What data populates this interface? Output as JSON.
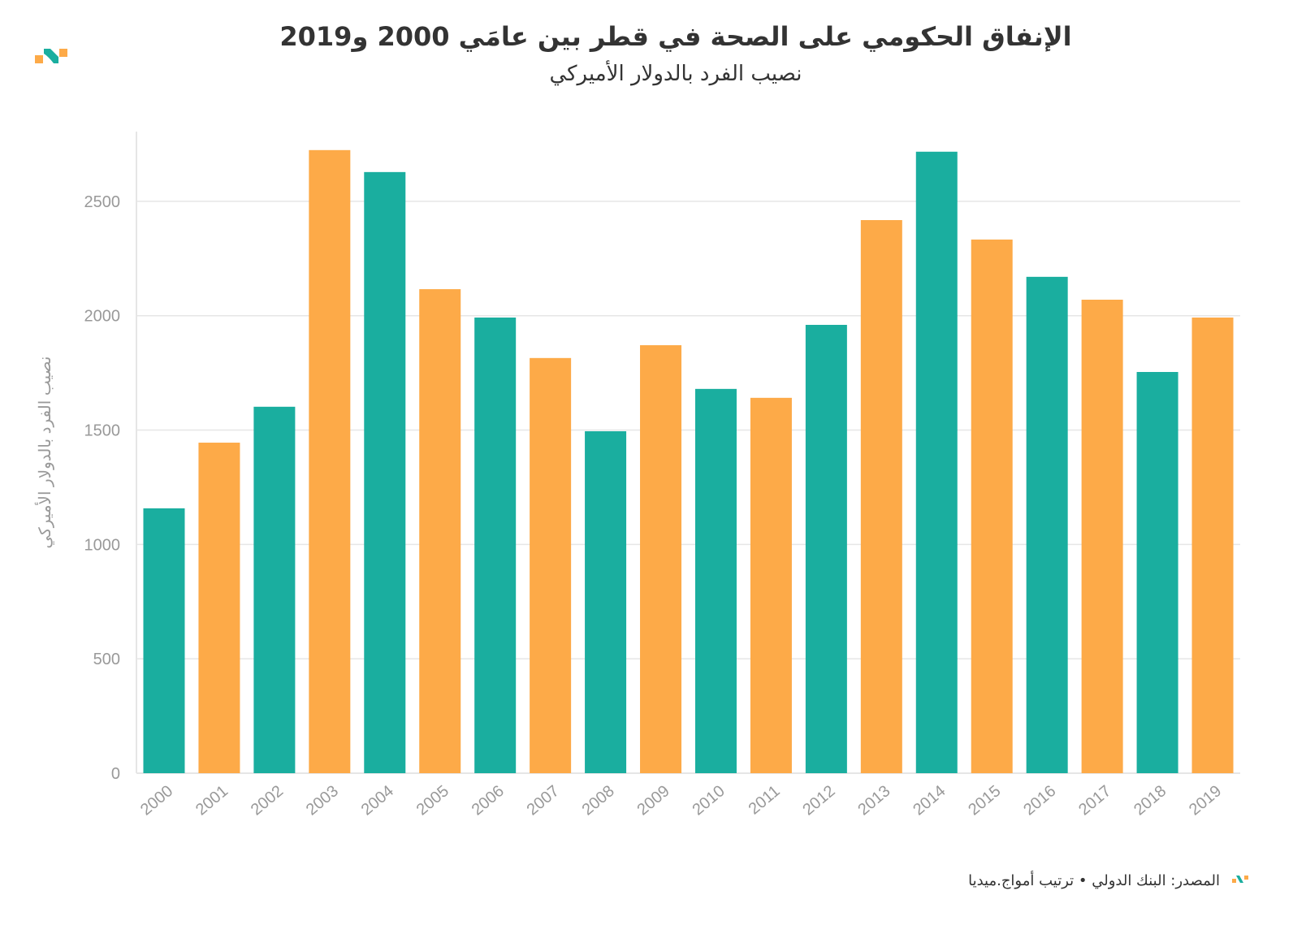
{
  "header": {
    "title": "الإنفاق الحكومي على الصحة في قطر بين عامَي 2000 و2019",
    "subtitle": "نصيب الفرد بالدولار الأميركي"
  },
  "footer": {
    "source": "المصدر: البنك الدولي • ترتيب أمواج.ميديا"
  },
  "colors": {
    "teal": "#1aae9f",
    "orange": "#fdaa48",
    "grid": "#e6e6e6",
    "text": "#999999"
  },
  "chart_data": {
    "type": "bar",
    "title": "الإنفاق الحكومي على الصحة في قطر بين عامَي 2000 و2019",
    "subtitle": "نصيب الفرد بالدولار الأميركي",
    "xlabel": "",
    "ylabel": "نصيب الفرد بالدولار الأميركي",
    "ylim": [
      0,
      2805
    ],
    "yticks": [
      0,
      500,
      1000,
      1500,
      2000,
      2500
    ],
    "grid": true,
    "categories": [
      "2000",
      "2001",
      "2002",
      "2003",
      "2004",
      "2005",
      "2006",
      "2007",
      "2008",
      "2009",
      "2010",
      "2011",
      "2012",
      "2013",
      "2014",
      "2015",
      "2016",
      "2017",
      "2018",
      "2019"
    ],
    "values": [
      1158,
      1445,
      1602,
      2724,
      2628,
      2116,
      1992,
      1815,
      1495,
      1871,
      1680,
      1641,
      1960,
      2418,
      2717,
      2333,
      2170,
      2070,
      1754,
      1992
    ],
    "bar_colors": [
      "teal",
      "orange",
      "teal",
      "orange",
      "teal",
      "orange",
      "teal",
      "orange",
      "teal",
      "orange",
      "teal",
      "orange",
      "teal",
      "orange",
      "teal",
      "orange",
      "teal",
      "orange",
      "teal",
      "orange"
    ]
  }
}
